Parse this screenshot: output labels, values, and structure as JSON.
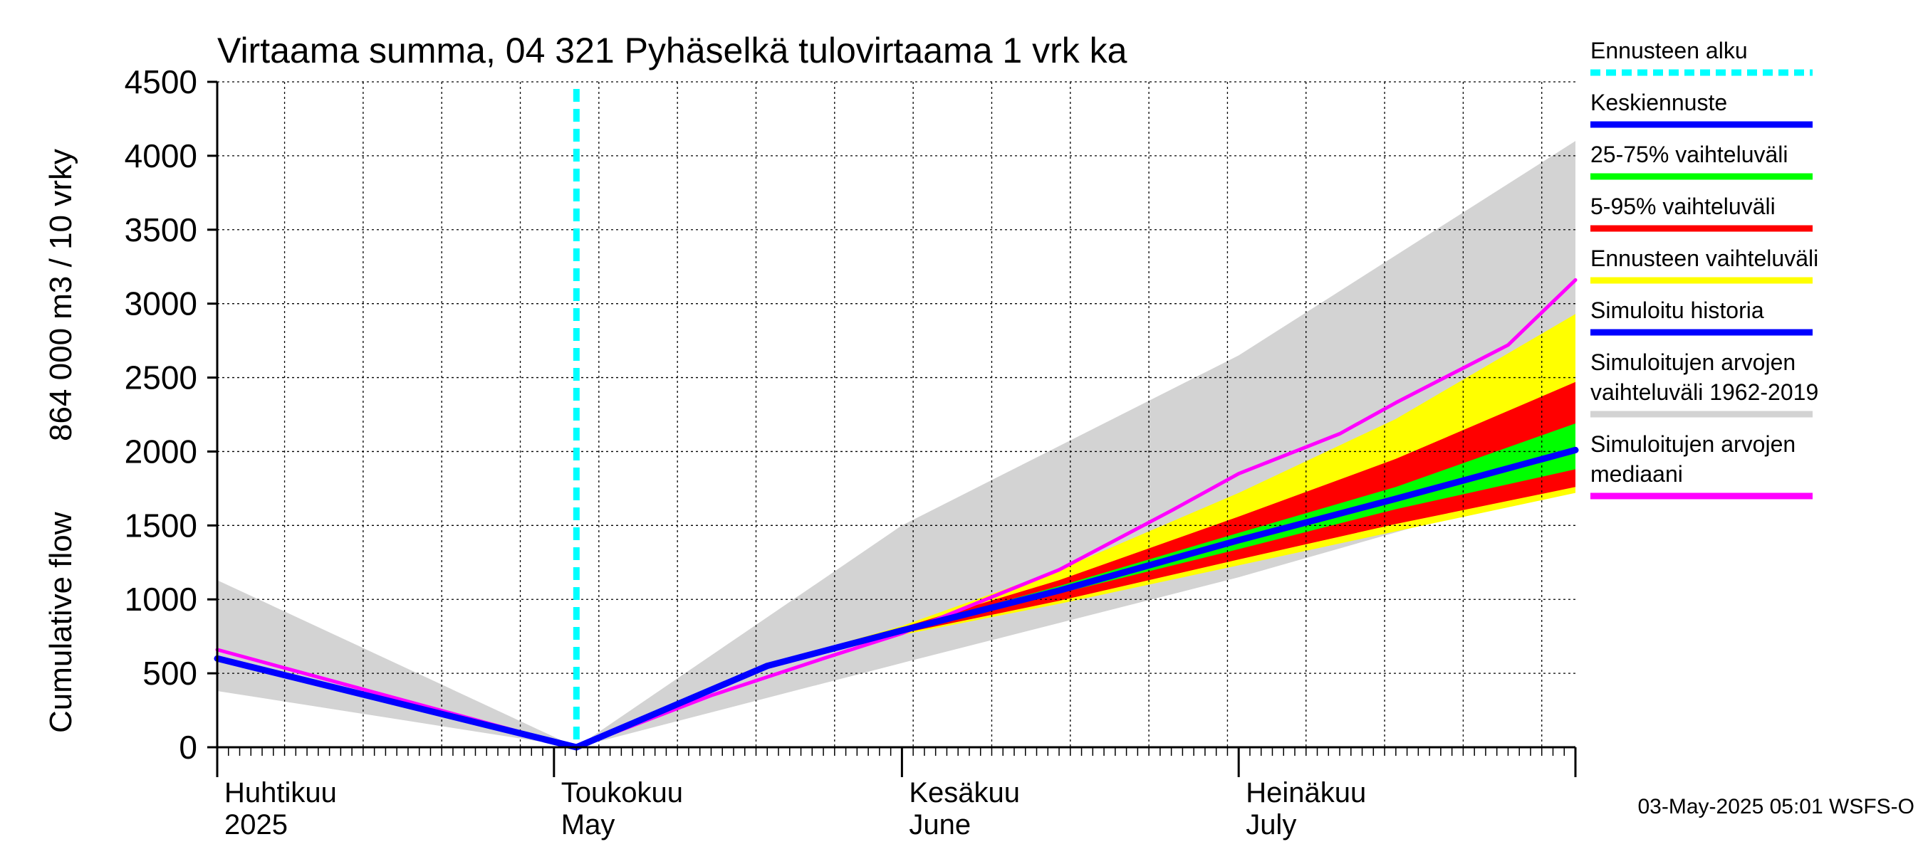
{
  "chart_data": {
    "type": "area",
    "title": "Virtaama summa, 04 321 Pyhäselkä tulovirtaama 1 vrk ka",
    "ylabel_fi": "864 000 m3 / 10 vrky",
    "ylabel_en": "Cumulative flow",
    "ylim": [
      0,
      4500
    ],
    "yticks": [
      0,
      500,
      1000,
      1500,
      2000,
      2500,
      3000,
      3500,
      4000,
      4500
    ],
    "xlim": [
      "2025-04-01",
      "2025-07-31"
    ],
    "grid": true,
    "legend_position": "right",
    "forecast_start": "2025-05-03",
    "x_labels": [
      {
        "date": "2025-04-01",
        "fi": "Huhtikuu",
        "en": "2025"
      },
      {
        "date": "2025-05-01",
        "fi": "Toukokuu",
        "en": "May"
      },
      {
        "date": "2025-06-01",
        "fi": "Kesäkuu",
        "en": "June"
      },
      {
        "date": "2025-07-01",
        "fi": "Heinäkuu",
        "en": "July"
      }
    ],
    "month_starts": [
      "2025-04-01",
      "2025-05-01",
      "2025-06-01",
      "2025-07-01",
      "2025-07-31"
    ],
    "series": [
      {
        "key": "sim_range",
        "kind": "band",
        "color": "#d3d3d3",
        "points": [
          [
            "2025-04-01",
            380,
            1130
          ],
          [
            "2025-05-03",
            0,
            0
          ],
          [
            "2025-06-01",
            570,
            1500
          ],
          [
            "2025-07-01",
            1150,
            2650
          ],
          [
            "2025-07-31",
            1800,
            4100
          ]
        ]
      },
      {
        "key": "forecast_range",
        "kind": "band",
        "color": "#ffff00",
        "points": [
          [
            "2025-05-03",
            0,
            0
          ],
          [
            "2025-05-20",
            540,
            560
          ],
          [
            "2025-06-01",
            760,
            820
          ],
          [
            "2025-06-15",
            970,
            1200
          ],
          [
            "2025-07-01",
            1230,
            1720
          ],
          [
            "2025-07-15",
            1460,
            2220
          ],
          [
            "2025-07-31",
            1720,
            2930
          ]
        ]
      },
      {
        "key": "p5_95",
        "kind": "band",
        "color": "#ff0000",
        "points": [
          [
            "2025-05-03",
            0,
            0
          ],
          [
            "2025-05-20",
            545,
            555
          ],
          [
            "2025-06-01",
            770,
            810
          ],
          [
            "2025-06-15",
            990,
            1130
          ],
          [
            "2025-07-01",
            1270,
            1560
          ],
          [
            "2025-07-15",
            1510,
            1950
          ],
          [
            "2025-07-31",
            1760,
            2470
          ]
        ]
      },
      {
        "key": "p25_75",
        "kind": "band",
        "color": "#00ff00",
        "points": [
          [
            "2025-05-03",
            0,
            0
          ],
          [
            "2025-05-20",
            548,
            552
          ],
          [
            "2025-06-01",
            785,
            800
          ],
          [
            "2025-06-15",
            1040,
            1090
          ],
          [
            "2025-07-01",
            1340,
            1450
          ],
          [
            "2025-07-15",
            1610,
            1760
          ],
          [
            "2025-07-31",
            1880,
            2190
          ]
        ]
      },
      {
        "key": "median_sim",
        "kind": "line",
        "color": "#ff00ff",
        "width": 5,
        "points": [
          [
            "2025-04-01",
            660
          ],
          [
            "2025-05-03",
            0
          ],
          [
            "2025-05-15",
            350
          ],
          [
            "2025-05-25",
            600
          ],
          [
            "2025-06-01",
            770
          ],
          [
            "2025-06-15",
            1200
          ],
          [
            "2025-06-25",
            1600
          ],
          [
            "2025-07-01",
            1850
          ],
          [
            "2025-07-10",
            2120
          ],
          [
            "2025-07-15",
            2330
          ],
          [
            "2025-07-25",
            2720
          ],
          [
            "2025-07-31",
            3160
          ]
        ]
      },
      {
        "key": "sim_history",
        "kind": "line",
        "color": "#0000ff",
        "width": 9,
        "points": [
          [
            "2025-04-01",
            600
          ],
          [
            "2025-05-03",
            0
          ]
        ]
      },
      {
        "key": "mean_forecast",
        "kind": "line",
        "color": "#0000ff",
        "width": 9,
        "points": [
          [
            "2025-05-03",
            0
          ],
          [
            "2025-05-20",
            550
          ],
          [
            "2025-06-01",
            790
          ],
          [
            "2025-06-15",
            1060
          ],
          [
            "2025-07-01",
            1400
          ],
          [
            "2025-07-15",
            1680
          ],
          [
            "2025-07-31",
            2010
          ]
        ]
      }
    ],
    "legend": [
      {
        "label": "Ennusteen alku",
        "color": "#00ffff",
        "style": "dashed"
      },
      {
        "label": "Keskiennuste",
        "color": "#0000ff",
        "style": "solid"
      },
      {
        "label": "25-75% vaihteluväli",
        "color": "#00ff00",
        "style": "solid"
      },
      {
        "label": "5-95% vaihteluväli",
        "color": "#ff0000",
        "style": "solid"
      },
      {
        "label": "Ennusteen vaihteluväli",
        "color": "#ffff00",
        "style": "solid"
      },
      {
        "label": "Simuloitu historia",
        "color": "#0000ff",
        "style": "solid"
      },
      {
        "label": "Simuloitujen arvojen vaihteluväli 1962-2019",
        "lines": [
          "Simuloitujen arvojen",
          "vaihteluväli 1962-2019"
        ],
        "color": "#d3d3d3",
        "style": "solid"
      },
      {
        "label": "Simuloitujen arvojen mediaani",
        "lines": [
          "Simuloitujen arvojen",
          "mediaani"
        ],
        "color": "#ff00ff",
        "style": "solid"
      }
    ],
    "footer": "03-May-2025 05:01 WSFS-O"
  }
}
